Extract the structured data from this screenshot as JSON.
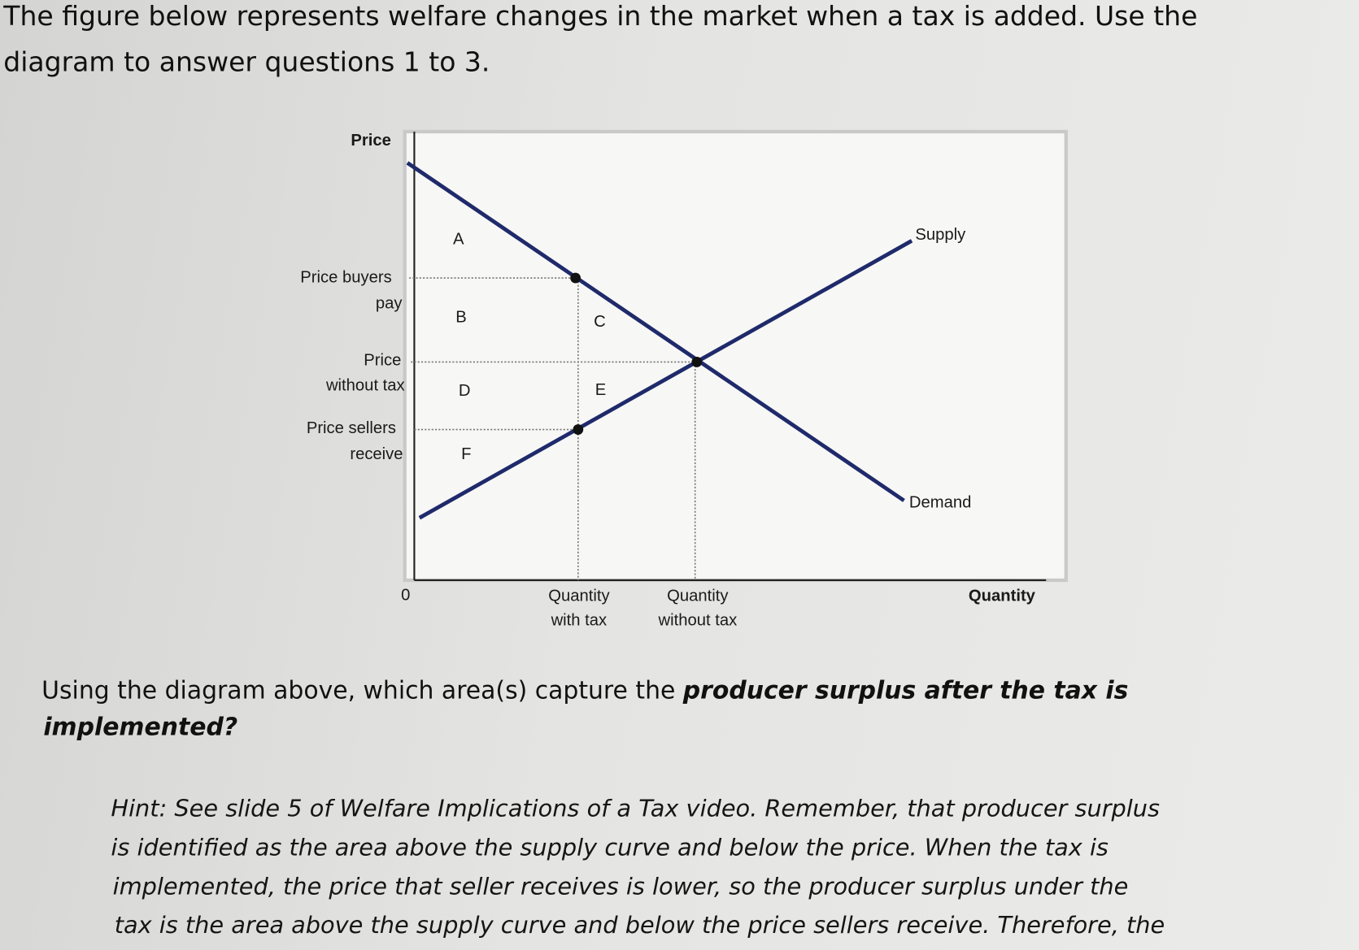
{
  "intro": [
    "The figure below represents welfare changes in the market when a tax is added. Use the",
    "diagram to answer questions 1 to 3."
  ],
  "diagram": {
    "y_axis_label": "Price",
    "x_axis_label": "Quantity",
    "origin": "0",
    "price_buyers_pay": [
      "Price buyers",
      "pay"
    ],
    "price_without_tax": [
      "Price",
      "without tax"
    ],
    "price_sellers_receive": [
      "Price sellers",
      "receive"
    ],
    "quantity_with_tax": [
      "Quantity",
      "with tax"
    ],
    "quantity_without_tax": [
      "Quantity",
      "without tax"
    ],
    "supply": "Supply",
    "demand": "Demand",
    "areas": [
      "A",
      "B",
      "C",
      "D",
      "E",
      "F"
    ]
  },
  "question": [
    "Using the diagram above, which area(s) capture the ",
    "producer surplus after the tax is",
    "implemented?"
  ],
  "hint": [
    "Hint: See slide 5 of Welfare Implications of a Tax video. Remember, that producer surplus",
    "is identified as the area above the supply curve and below the price. When the tax is",
    "implemented, the price that seller receives is lower, so the producer surplus under the",
    "tax is the area above the supply curve and below the price sellers receive. Therefore, the"
  ]
}
